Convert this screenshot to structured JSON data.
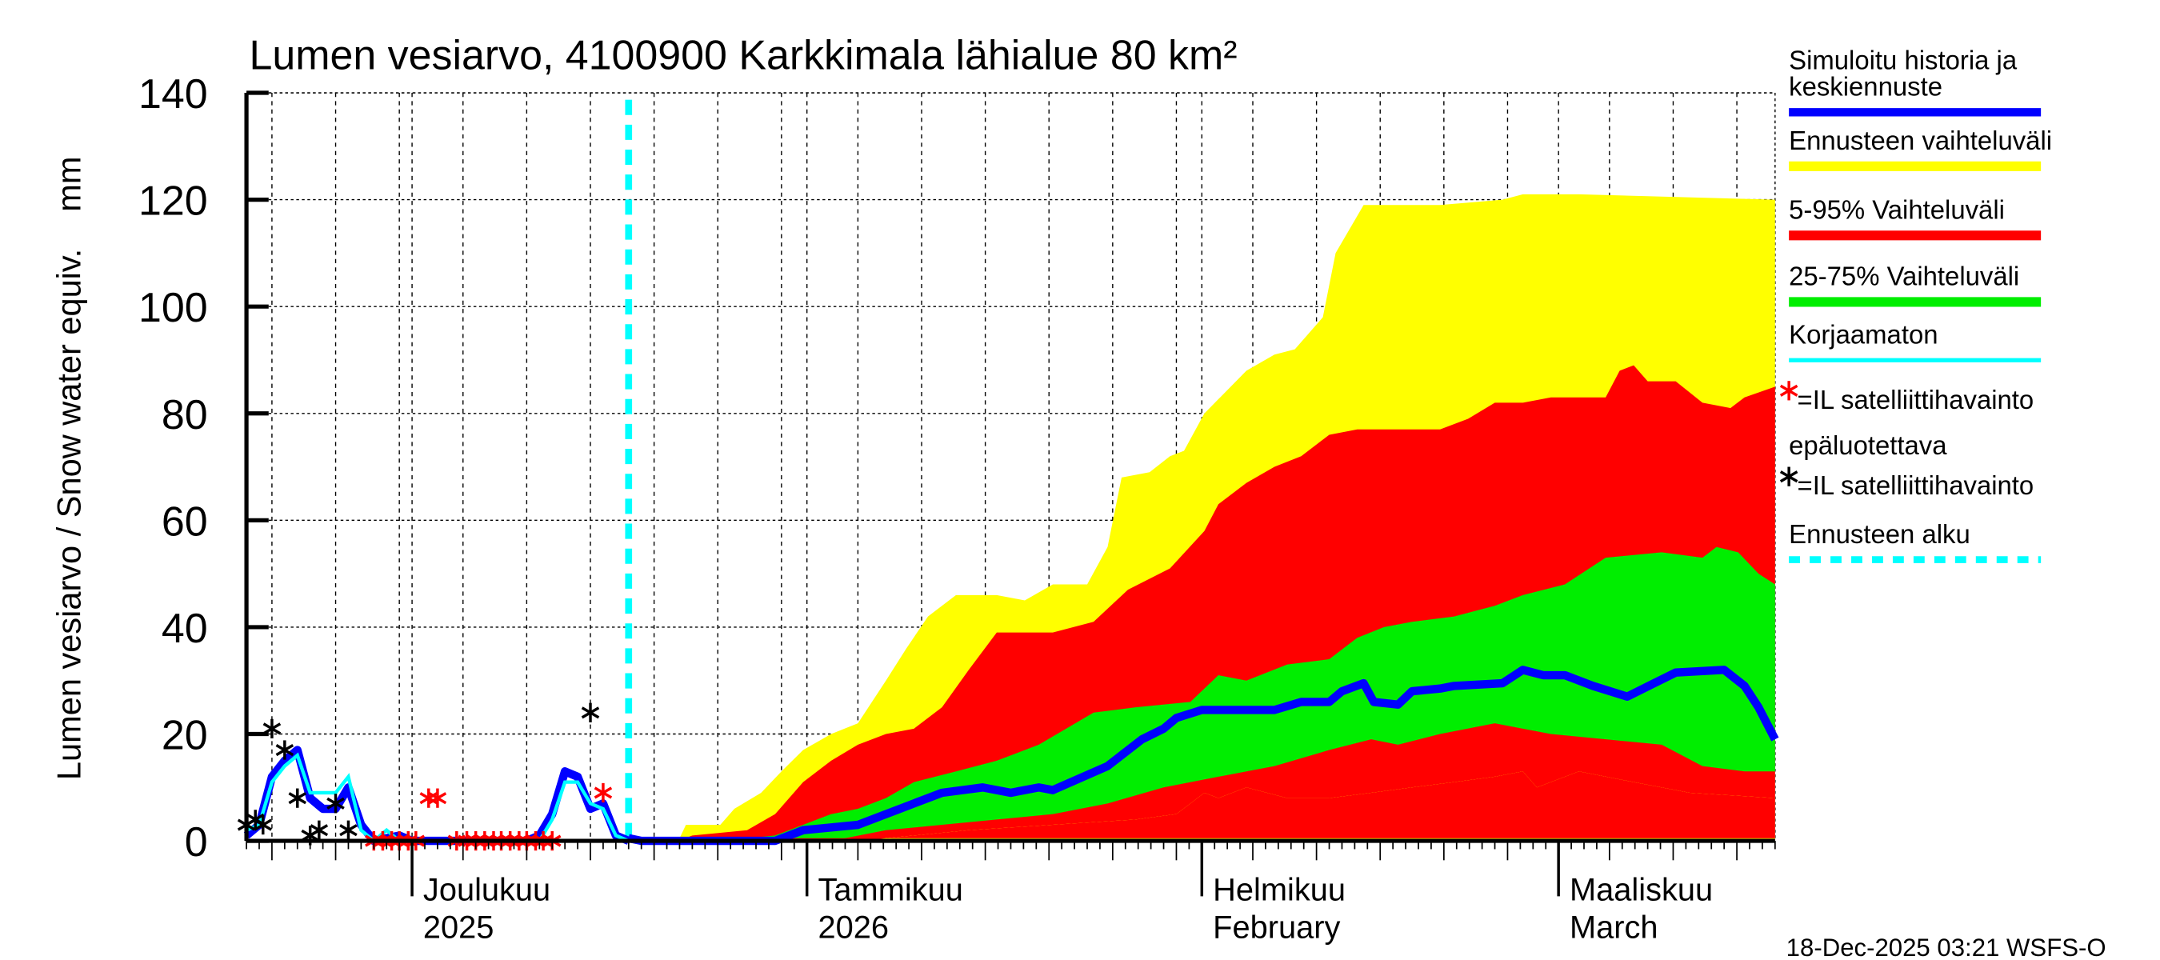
{
  "chart_data": {
    "type": "area",
    "title": "Lumen vesiarvo, 4100900 Karkkimala lähialue 80 km²",
    "ylabel": "Lumen vesiarvo / Snow water equiv.    mm",
    "xlabel": "",
    "ylim": [
      0,
      140
    ],
    "yticks": [
      "0",
      "20",
      "40",
      "60",
      "80",
      "100",
      "120",
      "140"
    ],
    "x_unit": "days since 2025-11-18",
    "xlim": [
      0,
      120
    ],
    "grid": true,
    "legend_position": "right",
    "forecast_start_day": 30,
    "month_labels": [
      {
        "day": 13,
        "line1": "Joulukuu",
        "line2": "2025"
      },
      {
        "day": 44,
        "line1": "Tammikuu",
        "line2": "2026"
      },
      {
        "day": 75,
        "line1": "Helmikuu",
        "line2": "February"
      },
      {
        "day": 103,
        "line1": "Maaliskuu",
        "line2": "March"
      }
    ],
    "bands": {
      "yellow_upper": [
        [
          30,
          0
        ],
        [
          33.9,
          0
        ],
        [
          34.5,
          3
        ],
        [
          37.2,
          3
        ],
        [
          38.3,
          6
        ],
        [
          40.4,
          9
        ],
        [
          42,
          13
        ],
        [
          43.7,
          17
        ],
        [
          45.9,
          20
        ],
        [
          48,
          22
        ],
        [
          50.2,
          30
        ],
        [
          51.8,
          36
        ],
        [
          53.5,
          42
        ],
        [
          55.7,
          46
        ],
        [
          58.9,
          46
        ],
        [
          61.1,
          45
        ],
        [
          63.3,
          48
        ],
        [
          66,
          48
        ],
        [
          67.6,
          55
        ],
        [
          68.7,
          68
        ],
        [
          70.9,
          69
        ],
        [
          72.5,
          72
        ],
        [
          73.6,
          73
        ],
        [
          75.2,
          80
        ],
        [
          78.5,
          88
        ],
        [
          80.7,
          91
        ],
        [
          82.3,
          92
        ],
        [
          84.5,
          98
        ],
        [
          85.5,
          110
        ],
        [
          87.7,
          119
        ],
        [
          91.5,
          119
        ],
        [
          93.7,
          119
        ],
        [
          98.6,
          120
        ],
        [
          100.2,
          121
        ],
        [
          104.6,
          121
        ],
        [
          120,
          120
        ]
      ],
      "red_upper": [
        [
          30,
          0
        ],
        [
          33.9,
          0
        ],
        [
          35,
          1
        ],
        [
          39.3,
          2
        ],
        [
          41.5,
          5
        ],
        [
          43.7,
          11
        ],
        [
          45.9,
          15
        ],
        [
          48,
          18
        ],
        [
          50.2,
          20
        ],
        [
          52.4,
          21
        ],
        [
          54.6,
          25
        ],
        [
          56.7,
          32
        ],
        [
          58.9,
          39
        ],
        [
          63.3,
          39
        ],
        [
          66.5,
          41
        ],
        [
          69.2,
          47
        ],
        [
          72.5,
          51
        ],
        [
          75.2,
          58
        ],
        [
          76.3,
          63
        ],
        [
          78.5,
          67
        ],
        [
          80.7,
          70
        ],
        [
          82.8,
          72
        ],
        [
          85,
          76
        ],
        [
          87.2,
          77
        ],
        [
          93.7,
          77
        ],
        [
          95.9,
          79
        ],
        [
          98,
          82
        ],
        [
          100.2,
          82
        ],
        [
          102.4,
          83
        ],
        [
          106.7,
          83
        ],
        [
          107.8,
          88
        ],
        [
          108.9,
          89
        ],
        [
          110,
          86
        ],
        [
          112.2,
          86
        ],
        [
          114.3,
          82
        ],
        [
          116.5,
          81
        ],
        [
          117.6,
          83
        ],
        [
          120,
          85
        ]
      ],
      "green_upper": [
        [
          30,
          0
        ],
        [
          37.2,
          0
        ],
        [
          41.5,
          1
        ],
        [
          43.7,
          3
        ],
        [
          45.9,
          5
        ],
        [
          48,
          6
        ],
        [
          50.2,
          8
        ],
        [
          52.4,
          11
        ],
        [
          55.7,
          13
        ],
        [
          58.9,
          15
        ],
        [
          62.2,
          18
        ],
        [
          66.5,
          24
        ],
        [
          69.8,
          25
        ],
        [
          74.1,
          26
        ],
        [
          76.3,
          31
        ],
        [
          78.5,
          30
        ],
        [
          81.7,
          33
        ],
        [
          85,
          34
        ],
        [
          87.2,
          38
        ],
        [
          89.3,
          40
        ],
        [
          91.5,
          41
        ],
        [
          94.8,
          42
        ],
        [
          98,
          44
        ],
        [
          100.2,
          46
        ],
        [
          103.5,
          48
        ],
        [
          106.7,
          53
        ],
        [
          111.1,
          54
        ],
        [
          114.3,
          53
        ],
        [
          115.4,
          55
        ],
        [
          117.1,
          54
        ],
        [
          118.7,
          50
        ],
        [
          120,
          48
        ]
      ],
      "green_lower": [
        [
          30,
          0
        ],
        [
          45.9,
          0
        ],
        [
          50.2,
          2
        ],
        [
          54.6,
          3
        ],
        [
          58.9,
          4
        ],
        [
          63.3,
          5
        ],
        [
          67.6,
          7
        ],
        [
          72,
          10
        ],
        [
          76.3,
          12
        ],
        [
          80.7,
          14
        ],
        [
          85,
          17
        ],
        [
          88.3,
          19
        ],
        [
          90.4,
          18
        ],
        [
          93.7,
          20
        ],
        [
          98,
          22
        ],
        [
          100.2,
          21
        ],
        [
          102.4,
          20
        ],
        [
          106.7,
          19
        ],
        [
          111.1,
          18
        ],
        [
          114.3,
          14
        ],
        [
          117.6,
          13
        ],
        [
          120,
          13
        ]
      ],
      "red_lower": [
        [
          30,
          0
        ],
        [
          48,
          0
        ],
        [
          52.4,
          1
        ],
        [
          56.7,
          2
        ],
        [
          63.3,
          3
        ],
        [
          69.8,
          4
        ],
        [
          73,
          5
        ],
        [
          75.2,
          9
        ],
        [
          76.3,
          8
        ],
        [
          78.5,
          10
        ],
        [
          81.7,
          8
        ],
        [
          85,
          8
        ],
        [
          88.3,
          9
        ],
        [
          91.5,
          10
        ],
        [
          94.8,
          11
        ],
        [
          98,
          12
        ],
        [
          100.2,
          13
        ],
        [
          101.3,
          10
        ],
        [
          104.6,
          13
        ],
        [
          108.9,
          11
        ],
        [
          113.3,
          9
        ],
        [
          120,
          8
        ]
      ],
      "yellow_lower": [
        [
          30,
          0
        ],
        [
          120,
          0
        ]
      ]
    },
    "median": [
      [
        30,
        0.5
      ],
      [
        31,
        0
      ],
      [
        41.5,
        0
      ],
      [
        43.7,
        2
      ],
      [
        48,
        3
      ],
      [
        50.2,
        5
      ],
      [
        52.4,
        7
      ],
      [
        54.6,
        9
      ],
      [
        57.8,
        10
      ],
      [
        60,
        9
      ],
      [
        62.2,
        10
      ],
      [
        63.3,
        9.5
      ],
      [
        67.6,
        14
      ],
      [
        70.3,
        19
      ],
      [
        72,
        21
      ],
      [
        73,
        23
      ],
      [
        75,
        24.5
      ],
      [
        80.7,
        24.5
      ],
      [
        82.8,
        26
      ],
      [
        85,
        26
      ],
      [
        86,
        28
      ],
      [
        87.7,
        29.5
      ],
      [
        88.5,
        26
      ],
      [
        90.4,
        25.5
      ],
      [
        91.5,
        28
      ],
      [
        93.7,
        28.5
      ],
      [
        94.8,
        29
      ],
      [
        98.6,
        29.5
      ],
      [
        100.2,
        32
      ],
      [
        101.8,
        31
      ],
      [
        103.5,
        31
      ],
      [
        105.7,
        29
      ],
      [
        108.4,
        27
      ],
      [
        110.5,
        29.5
      ],
      [
        112.2,
        31.5
      ],
      [
        116,
        32
      ],
      [
        117.6,
        29
      ],
      [
        118.7,
        25
      ],
      [
        120,
        19
      ]
    ],
    "history": [
      [
        0,
        1
      ],
      [
        1,
        3
      ],
      [
        2,
        12
      ],
      [
        3,
        15
      ],
      [
        4,
        17
      ],
      [
        5,
        8
      ],
      [
        6,
        6
      ],
      [
        7,
        6
      ],
      [
        8,
        10
      ],
      [
        9,
        3
      ],
      [
        10,
        0
      ],
      [
        12,
        1
      ],
      [
        13,
        0
      ],
      [
        16,
        0
      ],
      [
        22,
        0
      ],
      [
        23,
        1
      ],
      [
        24,
        5
      ],
      [
        25,
        13
      ],
      [
        26,
        12
      ],
      [
        27,
        6
      ],
      [
        28,
        7
      ],
      [
        29,
        1
      ],
      [
        30,
        0
      ]
    ],
    "uncorrected": [
      [
        0,
        2
      ],
      [
        1,
        3
      ],
      [
        2,
        11
      ],
      [
        3,
        14
      ],
      [
        4,
        16
      ],
      [
        5,
        9
      ],
      [
        6,
        9
      ],
      [
        7,
        9
      ],
      [
        8,
        12
      ],
      [
        9,
        2
      ],
      [
        10,
        0
      ],
      [
        11,
        2
      ],
      [
        12,
        0
      ],
      [
        23,
        0
      ],
      [
        24,
        4
      ],
      [
        25,
        11
      ],
      [
        26,
        11
      ],
      [
        27,
        7
      ],
      [
        28,
        6
      ],
      [
        29,
        1
      ],
      [
        30,
        0
      ]
    ],
    "obs_reliable": [
      [
        0,
        3
      ],
      [
        0.7,
        4
      ],
      [
        1.3,
        3
      ],
      [
        2,
        21
      ],
      [
        3,
        17
      ],
      [
        4,
        8
      ],
      [
        5,
        1
      ],
      [
        5.7,
        2
      ],
      [
        7,
        7
      ],
      [
        8,
        2
      ],
      [
        27,
        24
      ]
    ],
    "obs_unreliable": [
      [
        10,
        0
      ],
      [
        10.7,
        0
      ],
      [
        11.4,
        0
      ],
      [
        12,
        0
      ],
      [
        12.7,
        0
      ],
      [
        13.3,
        0
      ],
      [
        14.3,
        8
      ],
      [
        15,
        8
      ],
      [
        16.5,
        0
      ],
      [
        17.3,
        0
      ],
      [
        18,
        0
      ],
      [
        18.7,
        0
      ],
      [
        19.4,
        0
      ],
      [
        20,
        0
      ],
      [
        20.7,
        0
      ],
      [
        21.4,
        0
      ],
      [
        22,
        0
      ],
      [
        22.7,
        0
      ],
      [
        23.3,
        0
      ],
      [
        24,
        0
      ],
      [
        28,
        9
      ]
    ],
    "colors": {
      "yellow": "#ffff00",
      "red": "#ff0000",
      "green": "#00ee00",
      "median": "#0000ff",
      "uncorrected": "#00ffff",
      "forecast": "#00ffff"
    }
  },
  "legend": [
    {
      "label": "Simuloitu historia ja",
      "label2": "keskiennuste",
      "color": "#0000ff",
      "kind": "line"
    },
    {
      "label": "Ennusteen vaihteluväli",
      "color": "#ffff00",
      "kind": "band"
    },
    {
      "label": "5-95% Vaihteluväli",
      "color": "#ff0000",
      "kind": "band"
    },
    {
      "label": "25-75% Vaihteluväli",
      "color": "#00ee00",
      "kind": "band"
    },
    {
      "label": "Korjaamaton",
      "color": "#00ffff",
      "kind": "thin"
    },
    {
      "label": "=IL satelliittihavainto",
      "label2": "epäluotettava",
      "kind": "red-star"
    },
    {
      "label": "=IL satelliittihavainto",
      "kind": "black-star"
    },
    {
      "label": "Ennusteen alku",
      "color": "#00ffff",
      "kind": "dash"
    }
  ],
  "footer": "18-Dec-2025 03:21 WSFS-O"
}
